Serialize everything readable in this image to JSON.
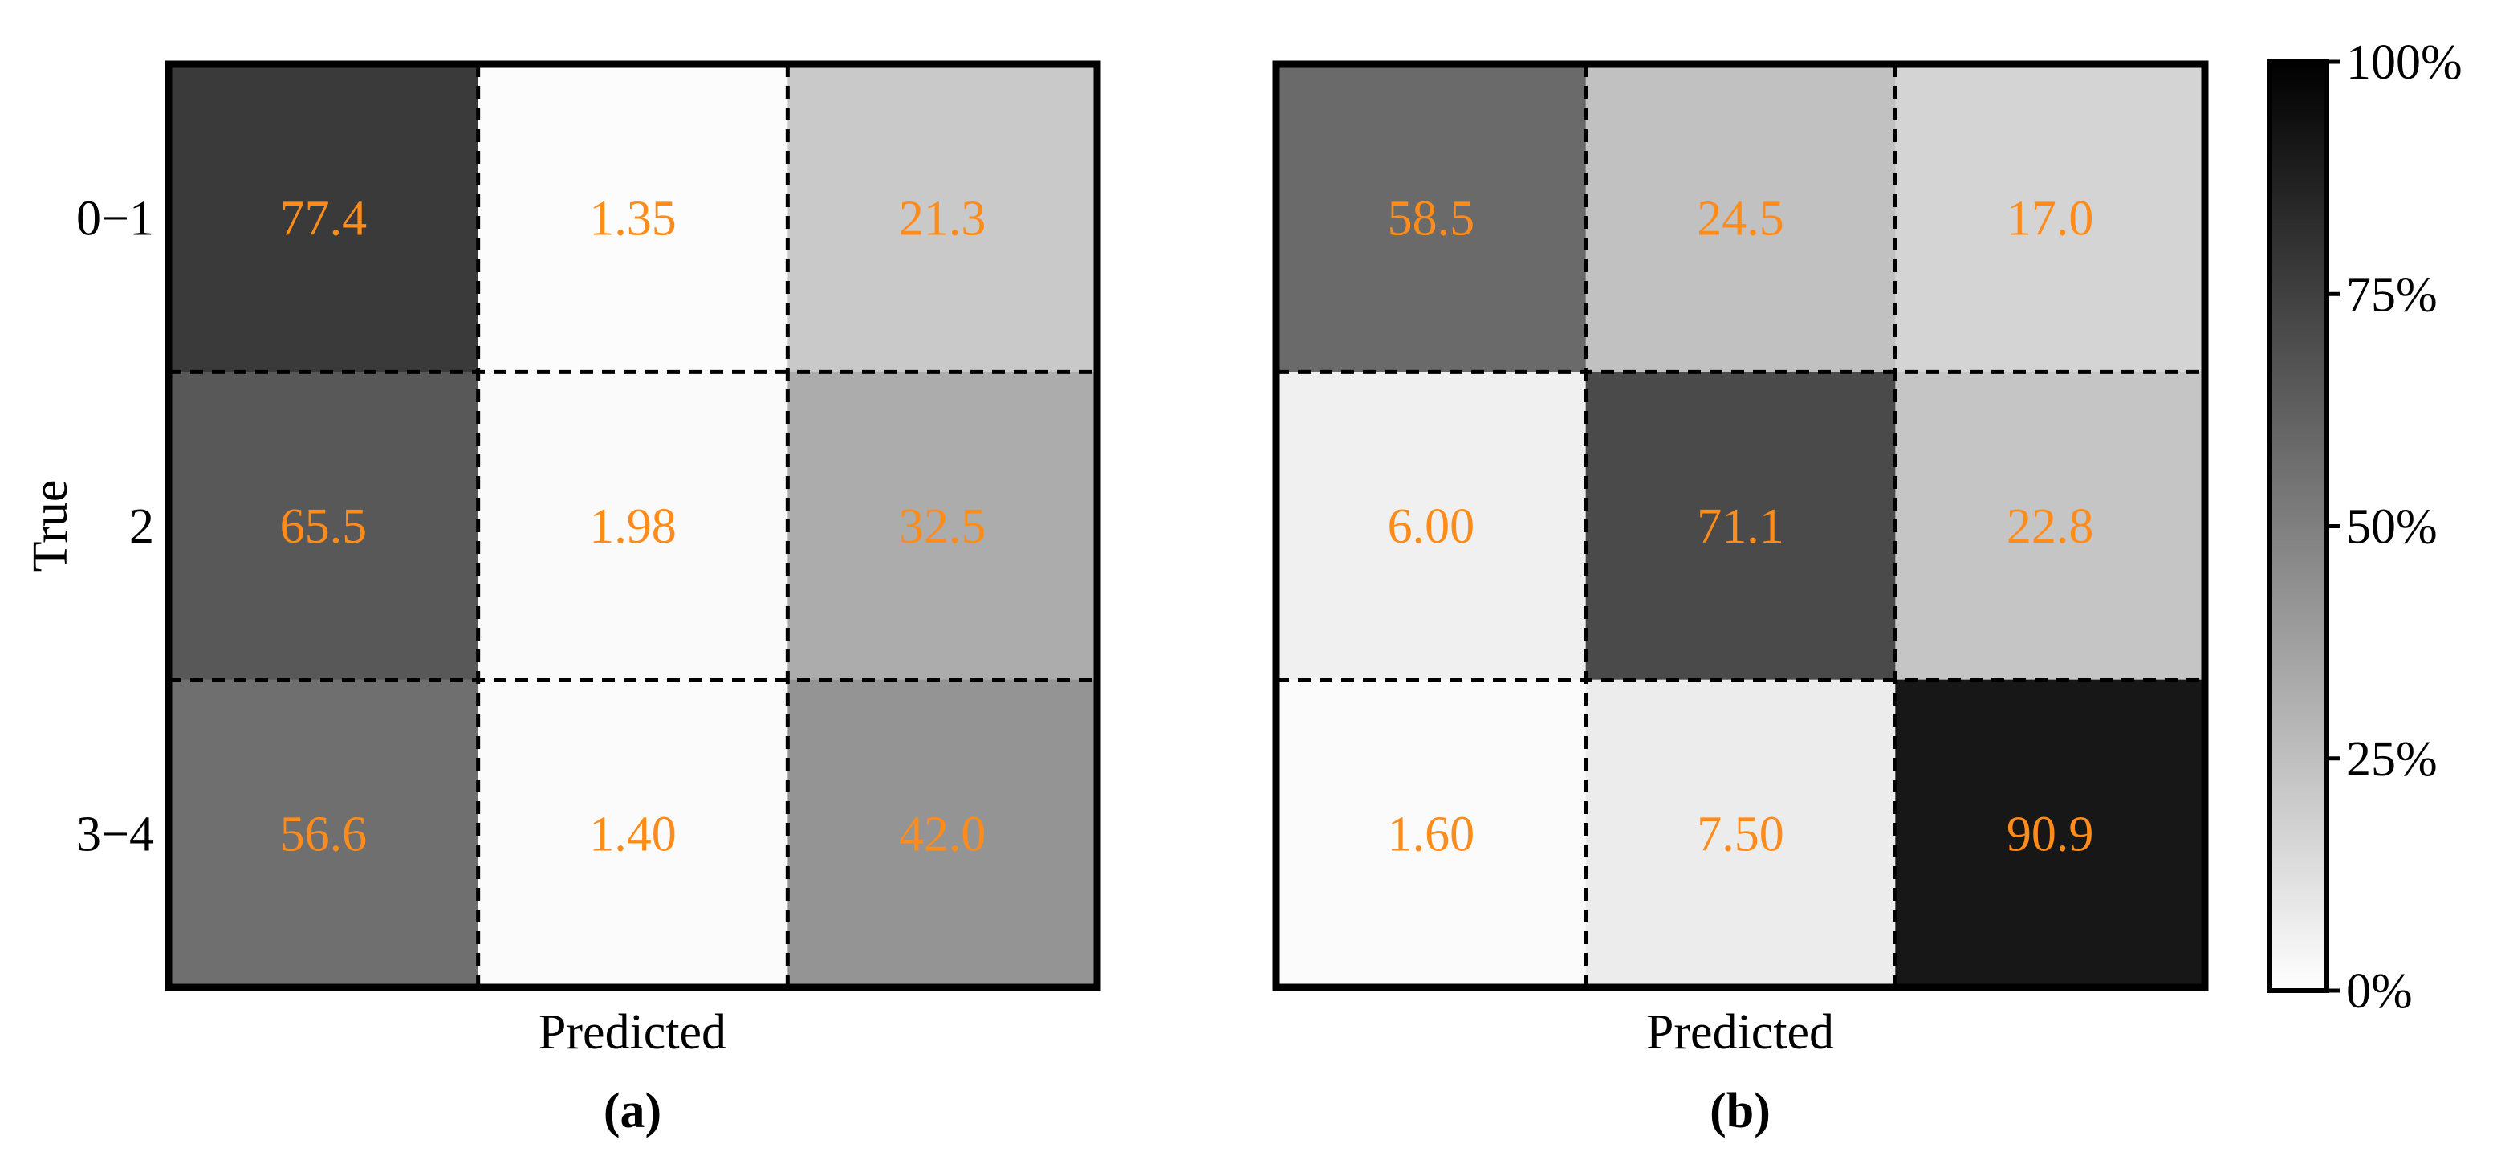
{
  "colors": {
    "cell_text": "#ff8c1a",
    "border": "#000000",
    "colormap_low": "#ffffff",
    "colormap_high": "#000000"
  },
  "chart_data": [
    {
      "type": "heatmap",
      "panel_label": "(a)",
      "xlabel": "Predicted",
      "ylabel": "True",
      "row_labels": [
        "0−1",
        "2",
        "3−4"
      ],
      "col_labels": [],
      "values": [
        [
          77.4,
          1.35,
          21.3
        ],
        [
          65.5,
          1.98,
          32.5
        ],
        [
          56.6,
          1.4,
          42.0
        ]
      ],
      "value_text": [
        [
          "77.4",
          "1.35",
          "21.3"
        ],
        [
          "65.5",
          "1.98",
          "32.5"
        ],
        [
          "56.6",
          "1.40",
          "42.0"
        ]
      ],
      "grid": "dashed",
      "vmin": 0,
      "vmax": 100
    },
    {
      "type": "heatmap",
      "panel_label": "(b)",
      "xlabel": "Predicted",
      "ylabel": "",
      "row_labels": [],
      "col_labels": [],
      "values": [
        [
          58.5,
          24.5,
          17.0
        ],
        [
          6.0,
          71.1,
          22.8
        ],
        [
          1.6,
          7.5,
          90.9
        ]
      ],
      "value_text": [
        [
          "58.5",
          "24.5",
          "17.0"
        ],
        [
          "6.00",
          "71.1",
          "22.8"
        ],
        [
          "1.60",
          "7.50",
          "90.9"
        ]
      ],
      "grid": "dashed",
      "vmin": 0,
      "vmax": 100
    }
  ],
  "colorbar": {
    "ticks": [
      0,
      25,
      50,
      75,
      100
    ],
    "tick_labels": [
      "0%",
      "25%",
      "50%",
      "75%",
      "100%"
    ],
    "placement": "right"
  }
}
